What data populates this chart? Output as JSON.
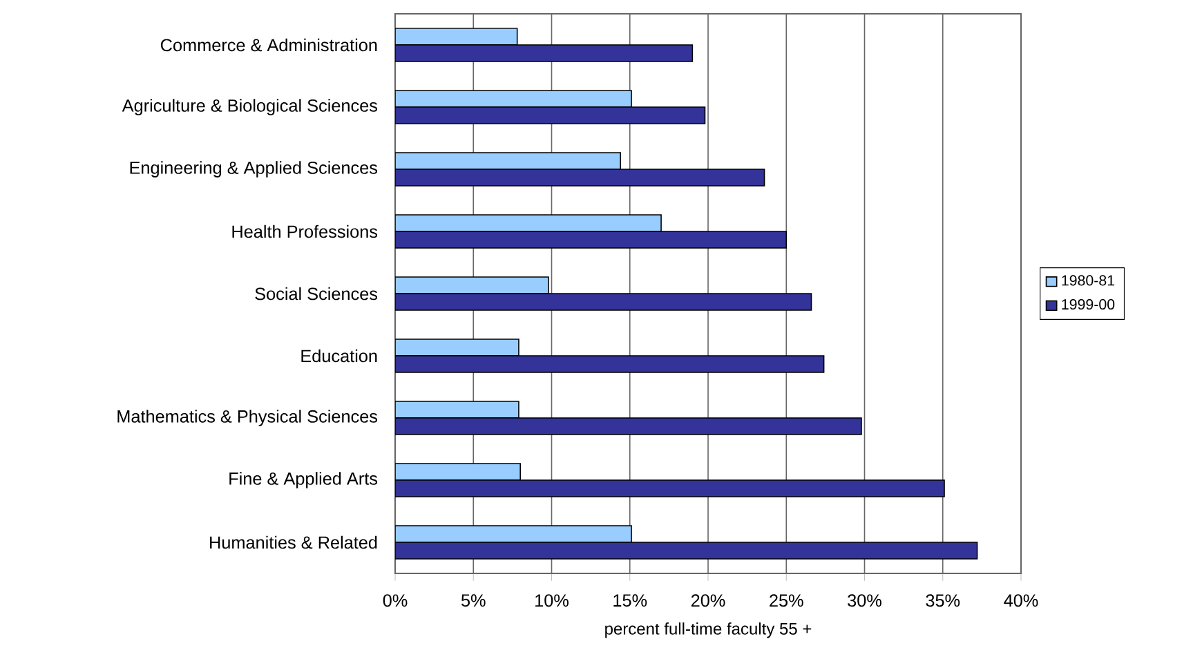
{
  "chart_data": {
    "type": "bar",
    "orientation": "horizontal",
    "xlabel": "percent full-time faculty 55 +",
    "categories": [
      "Commerce & Administration",
      "Agriculture & Biological Sciences",
      "Engineering & Applied Sciences",
      "Health Professions",
      "Social Sciences",
      "Education",
      "Mathematics & Physical Sciences",
      "Fine & Applied Arts",
      "Humanities & Related"
    ],
    "series": [
      {
        "name": "1980-81",
        "color": "#99ccff",
        "values": [
          7.8,
          15.1,
          14.4,
          17.0,
          9.8,
          7.9,
          7.9,
          8.0,
          15.1
        ]
      },
      {
        "name": "1999-00",
        "color": "#333399",
        "values": [
          19.0,
          19.8,
          23.6,
          25.0,
          26.6,
          27.4,
          29.8,
          35.1,
          37.2
        ]
      }
    ],
    "xlim": [
      0,
      40
    ],
    "xticks": [
      {
        "value": 0,
        "label": "0%"
      },
      {
        "value": 5,
        "label": "5%"
      },
      {
        "value": 10,
        "label": "10%"
      },
      {
        "value": 15,
        "label": "15%"
      },
      {
        "value": 20,
        "label": "20%"
      },
      {
        "value": 25,
        "label": "25%"
      },
      {
        "value": 30,
        "label": "30%"
      },
      {
        "value": 35,
        "label": "35%"
      },
      {
        "value": 40,
        "label": "40%"
      }
    ],
    "grid": "x",
    "legend": "right"
  }
}
